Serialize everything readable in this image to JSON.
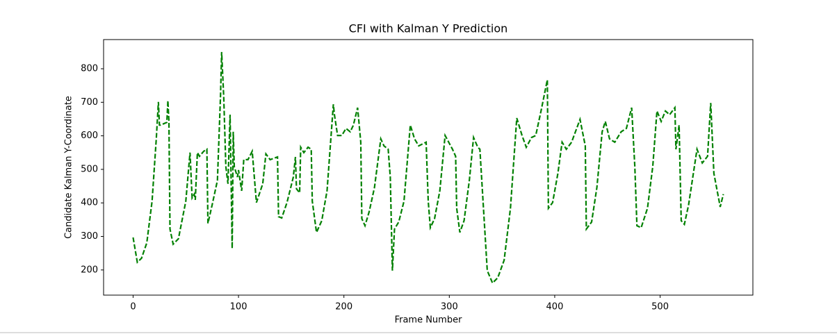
{
  "chart_data": {
    "type": "line",
    "title": "CFI with Kalman Y Prediction",
    "x_label": "Frame Number",
    "y_label": "Candidate Kalman Y-Coordinate",
    "color": "green",
    "line_style": "dashed",
    "x": [
      0,
      4,
      8,
      13,
      18,
      22,
      24,
      25,
      26,
      32,
      33,
      34,
      35,
      38,
      43,
      50,
      54,
      56,
      58,
      59,
      61,
      63,
      67,
      70,
      71,
      75,
      80,
      83,
      84,
      86,
      88,
      90,
      92,
      93,
      94,
      95,
      96,
      99,
      100,
      103,
      105,
      109,
      113,
      117,
      123,
      126,
      130,
      137,
      138,
      141,
      146,
      152,
      154,
      155,
      158,
      159,
      162,
      166,
      169,
      170,
      174,
      179,
      184,
      190,
      191,
      194,
      198,
      202,
      206,
      209,
      213,
      216,
      217,
      220,
      224,
      229,
      235,
      238,
      242,
      244,
      246,
      248,
      252,
      257,
      263,
      267,
      271,
      278,
      280,
      282,
      286,
      291,
      296,
      303,
      306,
      307,
      310,
      314,
      319,
      323,
      327,
      329,
      332,
      336,
      341,
      346,
      352,
      358,
      364,
      369,
      373,
      378,
      382,
      387,
      393,
      394,
      398,
      403,
      407,
      411,
      416,
      424,
      429,
      430,
      435,
      440,
      445,
      448,
      452,
      457,
      463,
      468,
      473,
      476,
      478,
      482,
      488,
      493,
      497,
      501,
      505,
      509,
      514,
      515,
      518,
      520,
      523,
      527,
      535,
      540,
      545,
      548,
      551,
      556,
      557,
      560
    ],
    "values": [
      297,
      223,
      235,
      281,
      405,
      591,
      701,
      632,
      632,
      640,
      705,
      643,
      322,
      277,
      293,
      405,
      550,
      415,
      426,
      409,
      550,
      539,
      554,
      560,
      339,
      394,
      467,
      725,
      850,
      715,
      508,
      457,
      663,
      467,
      264,
      612,
      508,
      477,
      498,
      436,
      529,
      529,
      554,
      401,
      457,
      546,
      529,
      537,
      359,
      355,
      401,
      477,
      537,
      442,
      430,
      566,
      550,
      566,
      560,
      405,
      312,
      347,
      436,
      694,
      663,
      601,
      601,
      622,
      612,
      632,
      684,
      581,
      353,
      332,
      374,
      446,
      591,
      570,
      560,
      477,
      198,
      322,
      343,
      405,
      632,
      591,
      570,
      581,
      405,
      326,
      353,
      436,
      601,
      560,
      539,
      384,
      312,
      347,
      467,
      595,
      566,
      560,
      405,
      198,
      161,
      177,
      229,
      384,
      653,
      601,
      566,
      595,
      601,
      674,
      767,
      384,
      401,
      488,
      581,
      560,
      581,
      649,
      570,
      322,
      343,
      446,
      612,
      643,
      591,
      581,
      612,
      622,
      684,
      508,
      332,
      326,
      384,
      508,
      674,
      643,
      674,
      663,
      684,
      560,
      632,
      347,
      336,
      394,
      560,
      519,
      539,
      698,
      488,
      405,
      388,
      426
    ],
    "xlim": [
      -28,
      588
    ],
    "ylim": [
      125,
      887
    ],
    "xticks": [
      0,
      100,
      200,
      300,
      400,
      500
    ],
    "yticks": [
      200,
      300,
      400,
      500,
      600,
      700,
      800
    ]
  }
}
